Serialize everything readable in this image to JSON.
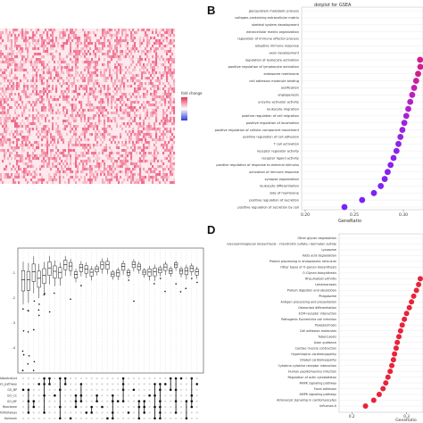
{
  "panels": {
    "A": {
      "legend_title": "fold change",
      "legend_colors": {
        "high": "#e8305a",
        "mid": "#ffffff",
        "low": "#2b3fd6"
      }
    },
    "B": {
      "letter": "B",
      "title": "dotplot for GSEA",
      "xlabel": "GeneRatio",
      "x_ticks": [
        "0.20",
        "0.25",
        "0.30"
      ]
    },
    "C": {
      "row_labels": [
        "MetaboAnalyst",
        "KEGG_pathway",
        "GO_BP",
        "GO_CC",
        "GO_MF",
        "Reactome",
        "WikiPathways",
        "Hallmark"
      ]
    },
    "D": {
      "letter": "D",
      "xlabel": "GeneRatio",
      "x_ticks": [
        "0.2",
        "0.3"
      ]
    }
  },
  "chart_data": [
    {
      "panel": "A",
      "type": "heatmap",
      "colors": {
        "high": "#e8305a",
        "low": "#2b3fd6"
      },
      "legend_title": "fold change"
    },
    {
      "panel": "B",
      "type": "scatter",
      "title": "dotplot for GSEA",
      "xlabel": "GeneRatio",
      "xlim": [
        0.2,
        0.32
      ],
      "categories": [
        "glycoprotein metabolic process",
        "collagen-containing extracellular matrix",
        "skeletal system development",
        "extracellular matrix organization",
        "regulation of immune effector process",
        "adaptive immune response",
        "axon development",
        "regulation of leukocyte activation",
        "positive regulation of lymphocyte activation",
        "endosome membrane",
        "cell adhesion molecule binding",
        "ossification",
        "angiogenesis",
        "enzyme activator activity",
        "leukocyte migration",
        "positive regulation of cell migration",
        "positive regulation of locomotion",
        "positive regulation of cellular component movement",
        "positive regulation of cell adhesion",
        "T cell activation",
        "receptor regulator activity",
        "receptor ligand activity",
        "positive regulation of response to external stimulus",
        "activation of immune response",
        "synapse organization",
        "leukocyte differentiation",
        "side of membrane",
        "positive regulation of secretion",
        "positive regulation of secretion by cell"
      ],
      "values": [
        null,
        null,
        null,
        null,
        null,
        null,
        null,
        0.317,
        0.318,
        0.315,
        0.313,
        0.311,
        0.309,
        0.307,
        0.305,
        0.303,
        0.301,
        0.299,
        0.297,
        0.295,
        0.293,
        0.29,
        0.287,
        0.284,
        0.281,
        0.277,
        0.27,
        0.258,
        0.24
      ],
      "colors": [
        "#d11d8f",
        "#d11d8f",
        "#d11d8f",
        "#d11d8f",
        "#d11d8f",
        "#d11d8f",
        "#d11d8f",
        "#d11d8f",
        "#d11d8f",
        "#d11d8f",
        "#c91fa0",
        "#c21fb0",
        "#bb20bd",
        "#b520c6",
        "#b021cc",
        "#a822d2",
        "#a022d8",
        "#9a23de",
        "#9623e2",
        "#9223e6",
        "#8e23e9",
        "#8b23ec",
        "#8823ee",
        "#8523f0",
        "#8223f2",
        "#8023f4",
        "#7d23f5",
        "#7a23f6",
        "#7823f7"
      ]
    },
    {
      "panel": "C",
      "type": "scatter",
      "row_labels": [
        "MetaboAnalyst",
        "KEGG_pathway",
        "GO_BP",
        "GO_CC",
        "GO_MF",
        "Reactome",
        "WikiPathways",
        "Hallmark"
      ],
      "ylim": [
        -5,
        0
      ],
      "y_ticks": [
        -1,
        -2,
        -3,
        -4
      ]
    },
    {
      "panel": "D",
      "type": "scatter",
      "xlabel": "GeneRatio",
      "xlim": [
        0.18,
        0.33
      ],
      "categories": [
        "Other glycan degradation",
        "Glycosaminoglycan biosynthesis - chondroitin sulfate / dermatan sulfate",
        "Lysosome",
        "Fatty acid degradation",
        "Protein processing in endoplasmic reticulum",
        "Other types of O-glycan biosynthesis",
        "O-Glycan biosynthesis",
        "Rheumatoid arthritis",
        "Leishmaniasis",
        "Protein digestion and absorption",
        "Phagosome",
        "Antigen processing and presentation",
        "Osteoclast differentiation",
        "ECM-receptor interaction",
        "Pathogenic Escherichia coli infection",
        "Toxoplasmosis",
        "Cell adhesion molecules",
        "Tuberculosis",
        "Axon guidance",
        "Cardiac muscle contraction",
        "Hypertrophic cardiomyopathy",
        "Dilated cardiomyopathy",
        "Cytokine-cytokine receptor interaction",
        "Human papillomavirus infection",
        "Regulation of actin cytoskeleton",
        "MAPK signaling pathway",
        "Focal adhesion",
        "AMPK signaling pathway",
        "Adrenergic signaling in cardiomyocytes",
        "Influenza A"
      ],
      "values": [
        null,
        null,
        null,
        null,
        null,
        null,
        null,
        0.325,
        0.322,
        0.318,
        0.313,
        0.309,
        0.305,
        0.3,
        0.296,
        0.292,
        0.289,
        0.286,
        0.283,
        0.281,
        0.278,
        0.276,
        0.273,
        0.27,
        0.266,
        0.262,
        0.257,
        0.25,
        0.24,
        0.225
      ],
      "color": "#e8233a"
    }
  ]
}
